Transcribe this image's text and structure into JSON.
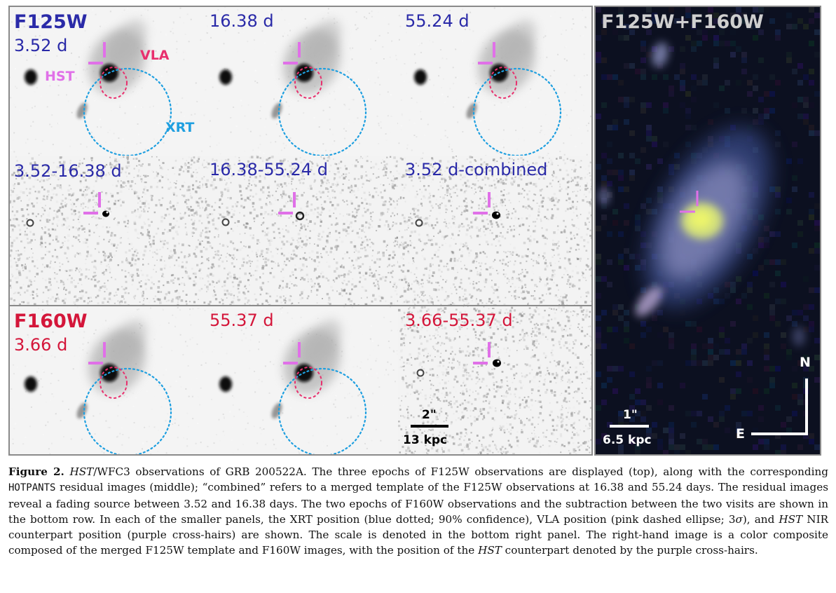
{
  "panels": {
    "p1_filter": "F125W",
    "p1_epoch": "3.52 d",
    "p2_epoch": "16.38 d",
    "p3_epoch": "55.24 d",
    "p4_label": "3.52-16.38 d",
    "p5_label": "16.38-55.24 d",
    "p6_label": "3.52 d-combined",
    "p7_filter": "F160W",
    "p7_epoch": "3.66 d",
    "p8_epoch": "55.37 d",
    "p9_label": "3.66-55.37 d",
    "composite_title": "F125W+F160W"
  },
  "annotations": {
    "hst": "HST",
    "vla": "VLA",
    "xrt": "XRT"
  },
  "scale_small": {
    "angle": "2\"",
    "distance": "13 kpc"
  },
  "scale_large": {
    "angle": "1\"",
    "distance": "6.5 kpc"
  },
  "compass": {
    "north": "N",
    "east": "E"
  },
  "caption": {
    "label": "Figure 2.",
    "s1_italic": "HST",
    "s1": "/WFC3 observations of GRB 200522A. The three epochs of F125W observations are displayed (top), along with the corresponding ",
    "code": "HOTPANTS",
    "s2": " residual images (middle); “combined” refers to a merged template of the F125W observations at 16.38 and 55.24 days.  The residual images reveal a fading source between 3.52 and 16.38 days.  The two epochs of F160W observations and the subtraction between the two visits are shown in the bottom row. In each of the smaller panels, the XRT position (blue dotted; 90% confidence), VLA position (pink dashed ellipse; 3",
    "sigma": "σ",
    "s3": "), and ",
    "s3_italic": "HST",
    "s4": " NIR counterpart position (purple cross-hairs) are shown. The scale is denoted in the bottom right panel. The right-hand image is a color composite composed of the merged F125W template and F160W images, with the position of the ",
    "s4_italic": "HST",
    "s5": " counterpart denoted by the purple cross-hairs."
  },
  "colors": {
    "xrt_circle": "#1e9fe0",
    "vla_ellipse": "#e8306e",
    "crosshair": "#e070e8",
    "label_blue": "#2a2aa8",
    "label_red": "#d4163a"
  }
}
